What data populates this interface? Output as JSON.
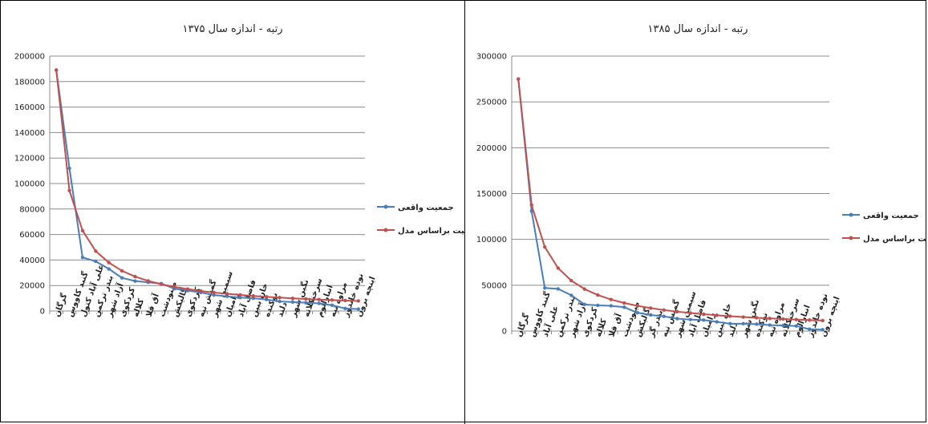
{
  "chart_data": [
    {
      "type": "line",
      "title": "رتبه - اندازه سال ۱۳۷۵",
      "ylim": [
        0,
        200000
      ],
      "yticks": [
        0,
        20000,
        40000,
        60000,
        80000,
        100000,
        120000,
        140000,
        160000,
        180000,
        200000
      ],
      "grid": true,
      "legend_position": "right",
      "categories": [
        "گرگان",
        "گنبد کاووس",
        "علی آباد کتول",
        "بندر ترکمن",
        "آزاد شهر",
        "کردکوی",
        "کلاله",
        "آق قلا",
        "مینودشت",
        "گالیکش",
        "کردکوی",
        "گمیش تپه",
        "سیمین شهر",
        "رامیان",
        "فاضل آباد",
        "خان ببین",
        "نوکنده",
        "دلند",
        "نگین شهر",
        "سرخنکلاته",
        "انبارالوم",
        "مراوه تپه",
        "نوده خاندوز",
        "اینچه برون"
      ],
      "series": [
        {
          "name": "جمعیت واقعی",
          "color": "#4a7ebb",
          "values": [
            189000,
            112000,
            42000,
            39000,
            33000,
            26000,
            23500,
            22500,
            21500,
            17500,
            16000,
            14500,
            12500,
            11500,
            10500,
            10000,
            9000,
            7500,
            7000,
            6500,
            6000,
            4500,
            2000,
            1500
          ]
        },
        {
          "name": "جمعیت براساس مدل",
          "color": "#c0504d",
          "values": [
            189000,
            94500,
            63000,
            47000,
            38000,
            31500,
            27000,
            23600,
            21000,
            18900,
            17200,
            15700,
            14500,
            13500,
            12600,
            11800,
            11100,
            10500,
            9900,
            9450,
            9000,
            8600,
            8200,
            7900
          ]
        }
      ]
    },
    {
      "type": "line",
      "title": "رتبه - اندازه سال ۱۳۸۵",
      "ylim": [
        0,
        300000
      ],
      "yticks": [
        0,
        50000,
        100000,
        150000,
        200000,
        250000,
        300000
      ],
      "grid": true,
      "legend_position": "right",
      "categories": [
        "گرگان",
        "گنبد کاووس",
        "علی آباد",
        "بندر ترکمن",
        "آزاد شهر",
        "کردکوی",
        "کلاله",
        "آق قلا",
        "مینودشت",
        "گالیکش",
        "بندر گز",
        "گمیش تپه",
        "سیمین شهر",
        "فاضل آباد",
        "رامیان",
        "خان ببین",
        "دلند",
        "نگین شهر",
        "نوکنده",
        "مراوه تپه",
        "سرخنکلاته",
        "انبارالوم",
        "نوده خاندوز",
        "اینچه برون"
      ],
      "series": [
        {
          "name": "جمعیت واقعی",
          "color": "#4a7ebb",
          "values": [
            275000,
            131000,
            47000,
            46000,
            39000,
            29000,
            28000,
            27500,
            26000,
            20000,
            17500,
            16000,
            13500,
            12500,
            12000,
            10000,
            8000,
            8000,
            7500,
            6500,
            6000,
            5500,
            2000,
            1500
          ]
        },
        {
          "name": "جمعیت براساس مدل",
          "color": "#c0504d",
          "values": [
            275000,
            137500,
            91700,
            68750,
            55000,
            45800,
            39300,
            34400,
            30600,
            27500,
            25000,
            22900,
            21150,
            19640,
            18330,
            17190,
            16180,
            15280,
            14470,
            13750,
            13100,
            12500,
            11960,
            11460
          ]
        }
      ]
    }
  ]
}
